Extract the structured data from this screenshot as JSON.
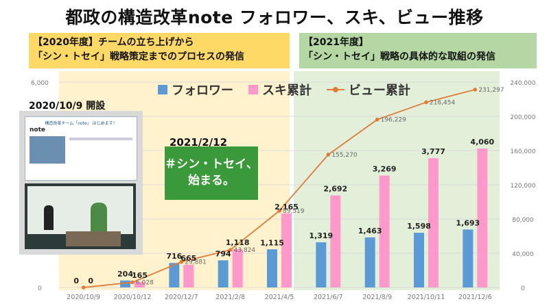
{
  "title": "都政の構造改革note フォロワー、スキ、ビュー推移",
  "phase1": {
    "line1": "【2020年度】チームの立ち上げから",
    "line2": "「シン・トセイ」戦略策定までのプロセスの発信"
  },
  "phase2": {
    "line1": "【2021年度】",
    "line2": "「シン・トセイ」戦略の具体的な取組の発信"
  },
  "open_label": "2020/10/9 開設",
  "screenshot_header": "構造改革チーム「note」 はじめます！",
  "screenshot_logo": "note",
  "callout": {
    "date": "2021/2/12",
    "line1": "＃シン・トセイ、",
    "line2": "始まる。"
  },
  "colors": {
    "followers": "#5b9bd5",
    "likes": "#ff99cc",
    "views": "#e07b39",
    "phase1_bg": "#fff2cc",
    "phase2_bg": "#e2efd9",
    "callout_bg": "#3a9a3a"
  },
  "chart_data": {
    "type": "bar+line",
    "categories": [
      "2020/10/9",
      "2020/10/12",
      "2020/12/7",
      "2021/2/8",
      "2021/4/5",
      "2021/6/7",
      "2021/8/9",
      "2021/10/11",
      "2021/12/6"
    ],
    "series": [
      {
        "name": "フォロワー",
        "type": "bar",
        "axis": "left",
        "values": [
          0,
          204,
          716,
          794,
          1115,
          1319,
          1463,
          1598,
          1693
        ]
      },
      {
        "name": "スキ累計",
        "type": "bar",
        "axis": "left",
        "values": [
          0,
          165,
          665,
          1118,
          2165,
          2692,
          3269,
          3777,
          4060
        ]
      },
      {
        "name": "ビュー累計",
        "type": "line",
        "axis": "right",
        "values": [
          0,
          6028,
          29881,
          43824,
          89519,
          155270,
          196229,
          216454,
          231297
        ]
      }
    ],
    "left_axis": {
      "ylim": [
        0,
        6000
      ],
      "ticks": [
        "0",
        "6,000"
      ]
    },
    "right_axis": {
      "ylim": [
        0,
        240000
      ],
      "ticks": [
        "0",
        "40,000",
        "80,000",
        "120,000",
        "160,000",
        "200,000",
        "240,000"
      ]
    },
    "bar_labels": {
      "followers": [
        "0",
        "204",
        "716",
        "794",
        "1,115",
        "1,319",
        "1,463",
        "1,598",
        "1,693"
      ],
      "likes": [
        "0",
        "165",
        "665",
        "1,118",
        "2,165",
        "2,692",
        "3,269",
        "3,777",
        "4,060"
      ]
    },
    "line_labels": [
      "",
      "6,028",
      "29,881",
      "43,824",
      "89,519",
      "155,270",
      "196,229",
      "216,454",
      "231,297"
    ],
    "legend": [
      "フォロワー",
      "スキ累計",
      "ビュー累計"
    ],
    "legend_position": "top"
  }
}
